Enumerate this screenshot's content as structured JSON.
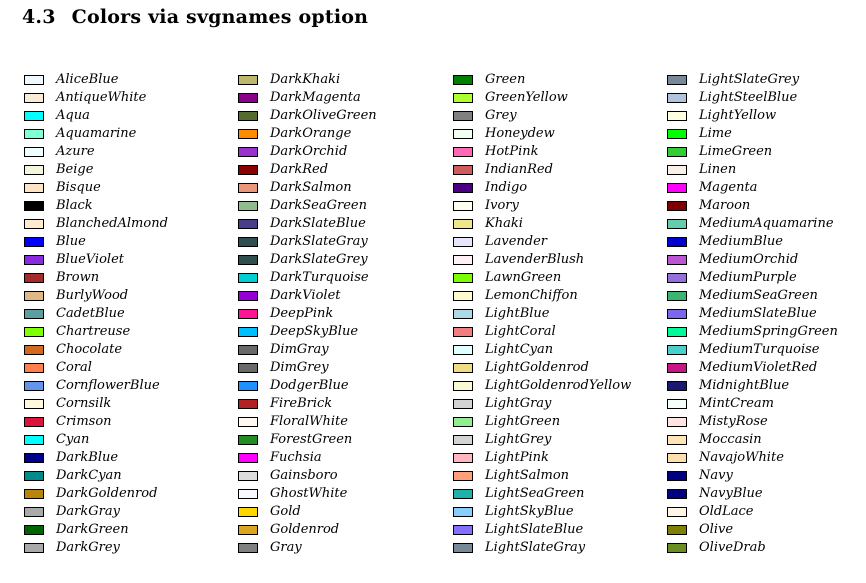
{
  "section": {
    "number": "4.3",
    "title": "Colors via svgnames option"
  },
  "columns": [
    [
      {
        "name": "AliceBlue",
        "hex": "#F0F8FF"
      },
      {
        "name": "AntiqueWhite",
        "hex": "#FAEBD7"
      },
      {
        "name": "Aqua",
        "hex": "#00FFFF"
      },
      {
        "name": "Aquamarine",
        "hex": "#7FFFD4"
      },
      {
        "name": "Azure",
        "hex": "#F0FFFF"
      },
      {
        "name": "Beige",
        "hex": "#F5F5DC"
      },
      {
        "name": "Bisque",
        "hex": "#FFE4C4"
      },
      {
        "name": "Black",
        "hex": "#000000"
      },
      {
        "name": "BlanchedAlmond",
        "hex": "#FFEBCD"
      },
      {
        "name": "Blue",
        "hex": "#0000FF"
      },
      {
        "name": "BlueViolet",
        "hex": "#8A2BE2"
      },
      {
        "name": "Brown",
        "hex": "#A52A2A"
      },
      {
        "name": "BurlyWood",
        "hex": "#DEB887"
      },
      {
        "name": "CadetBlue",
        "hex": "#5F9EA0"
      },
      {
        "name": "Chartreuse",
        "hex": "#7FFF00"
      },
      {
        "name": "Chocolate",
        "hex": "#D2691E"
      },
      {
        "name": "Coral",
        "hex": "#FF7F50"
      },
      {
        "name": "CornflowerBlue",
        "hex": "#6495ED"
      },
      {
        "name": "Cornsilk",
        "hex": "#FFF8DC"
      },
      {
        "name": "Crimson",
        "hex": "#DC143C"
      },
      {
        "name": "Cyan",
        "hex": "#00FFFF"
      },
      {
        "name": "DarkBlue",
        "hex": "#00008B"
      },
      {
        "name": "DarkCyan",
        "hex": "#008B8B"
      },
      {
        "name": "DarkGoldenrod",
        "hex": "#B8860B"
      },
      {
        "name": "DarkGray",
        "hex": "#A9A9A9"
      },
      {
        "name": "DarkGreen",
        "hex": "#006400"
      },
      {
        "name": "DarkGrey",
        "hex": "#A9A9A9"
      }
    ],
    [
      {
        "name": "DarkKhaki",
        "hex": "#BDB76B"
      },
      {
        "name": "DarkMagenta",
        "hex": "#8B008B"
      },
      {
        "name": "DarkOliveGreen",
        "hex": "#556B2F"
      },
      {
        "name": "DarkOrange",
        "hex": "#FF8C00"
      },
      {
        "name": "DarkOrchid",
        "hex": "#9932CC"
      },
      {
        "name": "DarkRed",
        "hex": "#8B0000"
      },
      {
        "name": "DarkSalmon",
        "hex": "#E9967A"
      },
      {
        "name": "DarkSeaGreen",
        "hex": "#8FBC8F"
      },
      {
        "name": "DarkSlateBlue",
        "hex": "#483D8B"
      },
      {
        "name": "DarkSlateGray",
        "hex": "#2F4F4F"
      },
      {
        "name": "DarkSlateGrey",
        "hex": "#2F4F4F"
      },
      {
        "name": "DarkTurquoise",
        "hex": "#00CED1"
      },
      {
        "name": "DarkViolet",
        "hex": "#9400D3"
      },
      {
        "name": "DeepPink",
        "hex": "#FF1493"
      },
      {
        "name": "DeepSkyBlue",
        "hex": "#00BFFF"
      },
      {
        "name": "DimGray",
        "hex": "#696969"
      },
      {
        "name": "DimGrey",
        "hex": "#696969"
      },
      {
        "name": "DodgerBlue",
        "hex": "#1E90FF"
      },
      {
        "name": "FireBrick",
        "hex": "#B22222"
      },
      {
        "name": "FloralWhite",
        "hex": "#FFFAF0"
      },
      {
        "name": "ForestGreen",
        "hex": "#228B22"
      },
      {
        "name": "Fuchsia",
        "hex": "#FF00FF"
      },
      {
        "name": "Gainsboro",
        "hex": "#DCDCDC"
      },
      {
        "name": "GhostWhite",
        "hex": "#F8F8FF"
      },
      {
        "name": "Gold",
        "hex": "#FFD700"
      },
      {
        "name": "Goldenrod",
        "hex": "#DAA520"
      },
      {
        "name": "Gray",
        "hex": "#808080"
      }
    ],
    [
      {
        "name": "Green",
        "hex": "#008000"
      },
      {
        "name": "GreenYellow",
        "hex": "#ADFF2F"
      },
      {
        "name": "Grey",
        "hex": "#808080"
      },
      {
        "name": "Honeydew",
        "hex": "#F0FFF0"
      },
      {
        "name": "HotPink",
        "hex": "#FF69B4"
      },
      {
        "name": "IndianRed",
        "hex": "#CD5C5C"
      },
      {
        "name": "Indigo",
        "hex": "#4B0082"
      },
      {
        "name": "Ivory",
        "hex": "#FFFFF0"
      },
      {
        "name": "Khaki",
        "hex": "#F0E68C"
      },
      {
        "name": "Lavender",
        "hex": "#E6E6FA"
      },
      {
        "name": "LavenderBlush",
        "hex": "#FFF0F5"
      },
      {
        "name": "LawnGreen",
        "hex": "#7CFC00"
      },
      {
        "name": "LemonChiffon",
        "hex": "#FFFACD"
      },
      {
        "name": "LightBlue",
        "hex": "#ADD8E6"
      },
      {
        "name": "LightCoral",
        "hex": "#F08080"
      },
      {
        "name": "LightCyan",
        "hex": "#E0FFFF"
      },
      {
        "name": "LightGoldenrod",
        "hex": "#EEDD82"
      },
      {
        "name": "LightGoldenrodYellow",
        "hex": "#FAFAD2"
      },
      {
        "name": "LightGray",
        "hex": "#D3D3D3"
      },
      {
        "name": "LightGreen",
        "hex": "#90EE90"
      },
      {
        "name": "LightGrey",
        "hex": "#D3D3D3"
      },
      {
        "name": "LightPink",
        "hex": "#FFB6C1"
      },
      {
        "name": "LightSalmon",
        "hex": "#FFA07A"
      },
      {
        "name": "LightSeaGreen",
        "hex": "#20B2AA"
      },
      {
        "name": "LightSkyBlue",
        "hex": "#87CEFA"
      },
      {
        "name": "LightSlateBlue",
        "hex": "#8470FF"
      },
      {
        "name": "LightSlateGray",
        "hex": "#778899"
      }
    ],
    [
      {
        "name": "LightSlateGrey",
        "hex": "#778899"
      },
      {
        "name": "LightSteelBlue",
        "hex": "#B0C4DE"
      },
      {
        "name": "LightYellow",
        "hex": "#FFFFE0"
      },
      {
        "name": "Lime",
        "hex": "#00FF00"
      },
      {
        "name": "LimeGreen",
        "hex": "#32CD32"
      },
      {
        "name": "Linen",
        "hex": "#FAF0E6"
      },
      {
        "name": "Magenta",
        "hex": "#FF00FF"
      },
      {
        "name": "Maroon",
        "hex": "#800000"
      },
      {
        "name": "MediumAquamarine",
        "hex": "#66CDAA"
      },
      {
        "name": "MediumBlue",
        "hex": "#0000CD"
      },
      {
        "name": "MediumOrchid",
        "hex": "#BA55D3"
      },
      {
        "name": "MediumPurple",
        "hex": "#9370DB"
      },
      {
        "name": "MediumSeaGreen",
        "hex": "#3CB371"
      },
      {
        "name": "MediumSlateBlue",
        "hex": "#7B68EE"
      },
      {
        "name": "MediumSpringGreen",
        "hex": "#00FA9A"
      },
      {
        "name": "MediumTurquoise",
        "hex": "#48D1CC"
      },
      {
        "name": "MediumVioletRed",
        "hex": "#C71585"
      },
      {
        "name": "MidnightBlue",
        "hex": "#191970"
      },
      {
        "name": "MintCream",
        "hex": "#F5FFFA"
      },
      {
        "name": "MistyRose",
        "hex": "#FFE4E1"
      },
      {
        "name": "Moccasin",
        "hex": "#FFE4B5"
      },
      {
        "name": "NavajoWhite",
        "hex": "#FFDEAD"
      },
      {
        "name": "Navy",
        "hex": "#000080"
      },
      {
        "name": "NavyBlue",
        "hex": "#000080"
      },
      {
        "name": "OldLace",
        "hex": "#FDF5E6"
      },
      {
        "name": "Olive",
        "hex": "#808000"
      },
      {
        "name": "OliveDrab",
        "hex": "#6B8E23"
      }
    ]
  ]
}
